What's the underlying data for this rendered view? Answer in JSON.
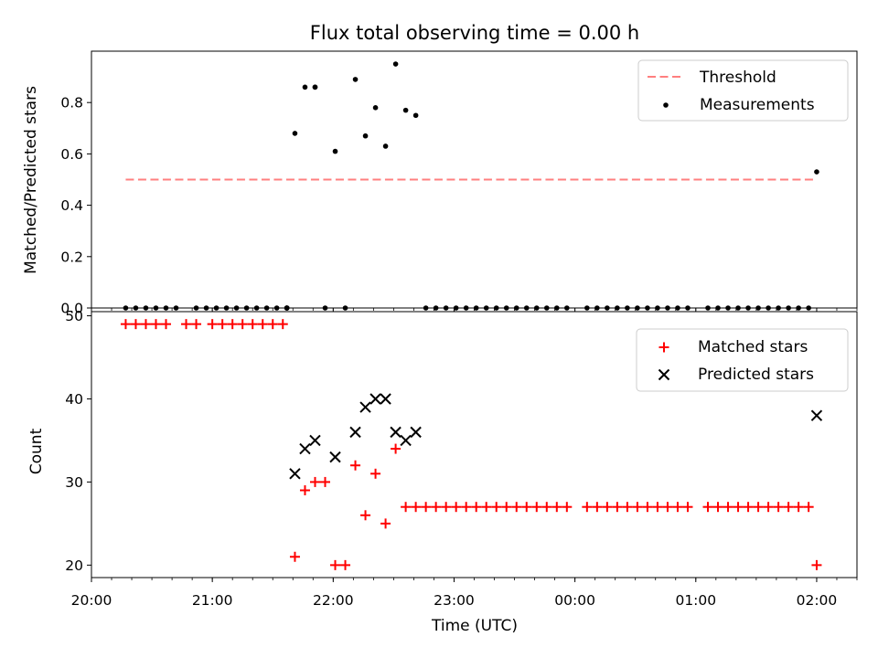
{
  "figure": {
    "title": "Flux total observing time = 0.00 h"
  },
  "x_axis": {
    "label": "Time (UTC)",
    "range": [
      "20:00",
      "02:20"
    ],
    "ticks": [
      "20:00",
      "21:00",
      "22:00",
      "23:00",
      "00:00",
      "01:00",
      "02:00"
    ]
  },
  "chart_data": [
    {
      "type": "scatter",
      "panel": "top",
      "ylabel": "Matched/Predicted stars",
      "ylim": [
        0,
        1.0
      ],
      "yticks": [
        "0.0",
        "0.2",
        "0.4",
        "0.6",
        "0.8"
      ],
      "x_ticks_labeled": false,
      "legend_position": "top-right",
      "threshold": {
        "name": "Threshold",
        "value": 0.5,
        "x_range": [
          "20:17",
          "02:00"
        ],
        "color": "#ff7f7f",
        "style": "dashed"
      },
      "series": [
        {
          "name": "Measurements",
          "color": "#000000",
          "points": [
            {
              "x": "20:17",
              "y": 0
            },
            {
              "x": "20:22",
              "y": 0
            },
            {
              "x": "20:27",
              "y": 0
            },
            {
              "x": "20:32",
              "y": 0
            },
            {
              "x": "20:37",
              "y": 0
            },
            {
              "x": "20:42",
              "y": 0
            },
            {
              "x": "20:52",
              "y": 0
            },
            {
              "x": "20:57",
              "y": 0
            },
            {
              "x": "21:02",
              "y": 0
            },
            {
              "x": "21:07",
              "y": 0
            },
            {
              "x": "21:12",
              "y": 0
            },
            {
              "x": "21:17",
              "y": 0
            },
            {
              "x": "21:22",
              "y": 0
            },
            {
              "x": "21:27",
              "y": 0
            },
            {
              "x": "21:32",
              "y": 0
            },
            {
              "x": "21:37",
              "y": 0
            },
            {
              "x": "21:37",
              "y": 0
            },
            {
              "x": "21:37",
              "y": 0
            },
            {
              "x": "21:37",
              "y": 0
            },
            {
              "x": "21:37",
              "y": 0
            },
            {
              "x": "21:41",
              "y": 0.68
            },
            {
              "x": "21:46",
              "y": 0.86
            },
            {
              "x": "21:51",
              "y": 0.86
            },
            {
              "x": "21:51",
              "y": 0.86
            },
            {
              "x": "21:56",
              "y": 0
            },
            {
              "x": "22:01",
              "y": 0.61
            },
            {
              "x": "22:06",
              "y": 0
            },
            {
              "x": "22:11",
              "y": 0.89
            },
            {
              "x": "22:16",
              "y": 0.67
            },
            {
              "x": "22:21",
              "y": 0.78
            },
            {
              "x": "22:26",
              "y": 0.63
            },
            {
              "x": "22:31",
              "y": 0.95
            },
            {
              "x": "22:36",
              "y": 0.77
            },
            {
              "x": "22:41",
              "y": 0.75
            },
            {
              "x": "22:46",
              "y": 0
            },
            {
              "x": "22:51",
              "y": 0
            },
            {
              "x": "22:56",
              "y": 0
            },
            {
              "x": "23:01",
              "y": 0
            },
            {
              "x": "23:06",
              "y": 0
            },
            {
              "x": "23:11",
              "y": 0
            },
            {
              "x": "23:16",
              "y": 0
            },
            {
              "x": "23:21",
              "y": 0
            },
            {
              "x": "23:26",
              "y": 0
            },
            {
              "x": "23:31",
              "y": 0
            },
            {
              "x": "23:36",
              "y": 0
            },
            {
              "x": "23:41",
              "y": 0
            },
            {
              "x": "23:46",
              "y": 0
            },
            {
              "x": "23:51",
              "y": 0
            },
            {
              "x": "23:56",
              "y": 0
            },
            {
              "x": "00:06",
              "y": 0
            },
            {
              "x": "00:11",
              "y": 0
            },
            {
              "x": "00:16",
              "y": 0
            },
            {
              "x": "00:21",
              "y": 0
            },
            {
              "x": "00:26",
              "y": 0
            },
            {
              "x": "00:31",
              "y": 0
            },
            {
              "x": "00:36",
              "y": 0
            },
            {
              "x": "00:41",
              "y": 0
            },
            {
              "x": "00:46",
              "y": 0
            },
            {
              "x": "00:51",
              "y": 0
            },
            {
              "x": "00:56",
              "y": 0
            },
            {
              "x": "01:06",
              "y": 0
            },
            {
              "x": "01:11",
              "y": 0
            },
            {
              "x": "01:16",
              "y": 0
            },
            {
              "x": "01:21",
              "y": 0
            },
            {
              "x": "01:26",
              "y": 0
            },
            {
              "x": "01:31",
              "y": 0
            },
            {
              "x": "01:36",
              "y": 0
            },
            {
              "x": "01:41",
              "y": 0
            },
            {
              "x": "01:46",
              "y": 0
            },
            {
              "x": "01:51",
              "y": 0
            },
            {
              "x": "01:56",
              "y": 0
            },
            {
              "x": "02:00",
              "y": 0.53
            }
          ]
        }
      ]
    },
    {
      "type": "scatter",
      "panel": "bottom",
      "ylabel": "Count",
      "ylim": [
        18.5,
        50.5
      ],
      "yticks": [
        "20",
        "30",
        "40",
        "50"
      ],
      "legend_position": "top-right",
      "series": [
        {
          "name": "Matched stars",
          "marker": "+",
          "color": "#ff0000",
          "points": [
            {
              "x": "20:17",
              "y": 49
            },
            {
              "x": "20:22",
              "y": 49
            },
            {
              "x": "20:27",
              "y": 49
            },
            {
              "x": "20:32",
              "y": 49
            },
            {
              "x": "20:37",
              "y": 49
            },
            {
              "x": "20:47",
              "y": 49
            },
            {
              "x": "20:52",
              "y": 49
            },
            {
              "x": "21:00",
              "y": 49
            },
            {
              "x": "21:05",
              "y": 49
            },
            {
              "x": "21:10",
              "y": 49
            },
            {
              "x": "21:15",
              "y": 49
            },
            {
              "x": "21:20",
              "y": 49
            },
            {
              "x": "21:25",
              "y": 49
            },
            {
              "x": "21:30",
              "y": 49
            },
            {
              "x": "21:35",
              "y": 49
            },
            {
              "x": "21:41",
              "y": 21
            },
            {
              "x": "21:46",
              "y": 29
            },
            {
              "x": "21:51",
              "y": 30
            },
            {
              "x": "21:56",
              "y": 30
            },
            {
              "x": "22:01",
              "y": 20
            },
            {
              "x": "22:06",
              "y": 20
            },
            {
              "x": "22:11",
              "y": 32
            },
            {
              "x": "22:16",
              "y": 26
            },
            {
              "x": "22:21",
              "y": 31
            },
            {
              "x": "22:26",
              "y": 25
            },
            {
              "x": "22:31",
              "y": 34
            },
            {
              "x": "22:36",
              "y": 27
            },
            {
              "x": "22:41",
              "y": 27
            },
            {
              "x": "22:46",
              "y": 27
            },
            {
              "x": "22:51",
              "y": 27
            },
            {
              "x": "22:56",
              "y": 27
            },
            {
              "x": "23:01",
              "y": 27
            },
            {
              "x": "23:06",
              "y": 27
            },
            {
              "x": "23:11",
              "y": 27
            },
            {
              "x": "23:16",
              "y": 27
            },
            {
              "x": "23:21",
              "y": 27
            },
            {
              "x": "23:26",
              "y": 27
            },
            {
              "x": "23:31",
              "y": 27
            },
            {
              "x": "23:36",
              "y": 27
            },
            {
              "x": "23:41",
              "y": 27
            },
            {
              "x": "23:46",
              "y": 27
            },
            {
              "x": "23:51",
              "y": 27
            },
            {
              "x": "23:56",
              "y": 27
            },
            {
              "x": "00:06",
              "y": 27
            },
            {
              "x": "00:11",
              "y": 27
            },
            {
              "x": "00:16",
              "y": 27
            },
            {
              "x": "00:21",
              "y": 27
            },
            {
              "x": "00:26",
              "y": 27
            },
            {
              "x": "00:31",
              "y": 27
            },
            {
              "x": "00:36",
              "y": 27
            },
            {
              "x": "00:41",
              "y": 27
            },
            {
              "x": "00:46",
              "y": 27
            },
            {
              "x": "00:51",
              "y": 27
            },
            {
              "x": "00:56",
              "y": 27
            },
            {
              "x": "01:06",
              "y": 27
            },
            {
              "x": "01:11",
              "y": 27
            },
            {
              "x": "01:16",
              "y": 27
            },
            {
              "x": "01:21",
              "y": 27
            },
            {
              "x": "01:26",
              "y": 27
            },
            {
              "x": "01:31",
              "y": 27
            },
            {
              "x": "01:36",
              "y": 27
            },
            {
              "x": "01:41",
              "y": 27
            },
            {
              "x": "01:46",
              "y": 27
            },
            {
              "x": "01:51",
              "y": 27
            },
            {
              "x": "01:56",
              "y": 27
            },
            {
              "x": "02:00",
              "y": 20
            }
          ]
        },
        {
          "name": "Predicted stars",
          "marker": "x",
          "color": "#000000",
          "points": [
            {
              "x": "21:41",
              "y": 31
            },
            {
              "x": "21:46",
              "y": 34
            },
            {
              "x": "21:51",
              "y": 35
            },
            {
              "x": "22:01",
              "y": 33
            },
            {
              "x": "22:11",
              "y": 36
            },
            {
              "x": "22:16",
              "y": 39
            },
            {
              "x": "22:21",
              "y": 40
            },
            {
              "x": "22:26",
              "y": 40
            },
            {
              "x": "22:31",
              "y": 36
            },
            {
              "x": "22:36",
              "y": 35
            },
            {
              "x": "22:41",
              "y": 36
            },
            {
              "x": "02:00",
              "y": 38
            }
          ]
        }
      ]
    }
  ]
}
